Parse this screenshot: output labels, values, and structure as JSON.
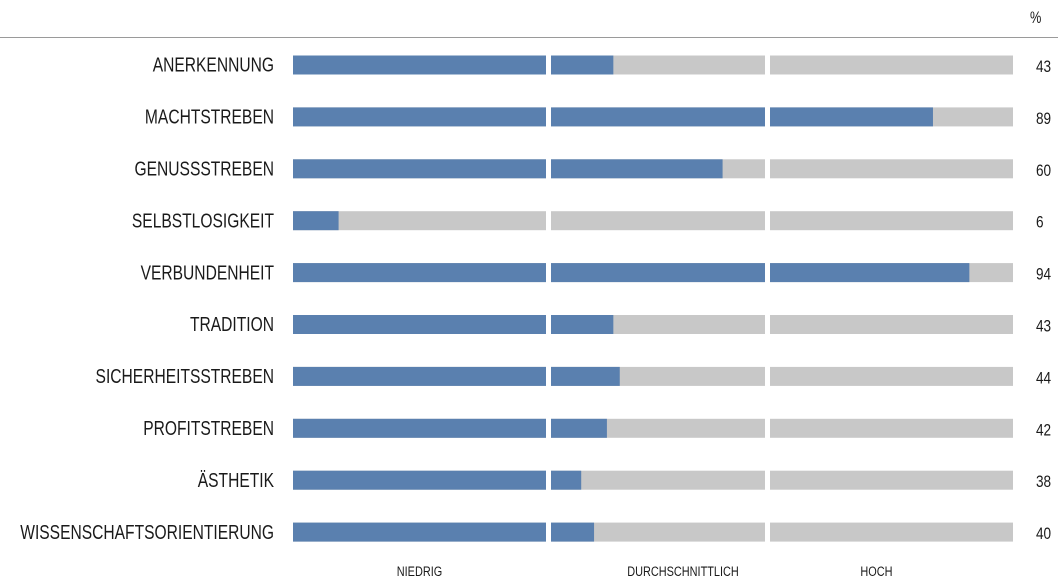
{
  "chart_data": {
    "type": "bar",
    "unit": "%",
    "categories": [
      "ANERKENNUNG",
      "MACHTSTREBEN",
      "GENUSSSTREBEN",
      "SELBSTLOSIGKEIT",
      "VERBUNDENHEIT",
      "TRADITION",
      "SICHERHEITSSTREBEN",
      "PROFITSTREBEN",
      "ÄSTHETIK",
      "WISSENSCHAFTSORIENTIERUNG"
    ],
    "values": [
      43,
      89,
      60,
      6,
      94,
      43,
      44,
      42,
      38,
      40
    ],
    "value_labels": [
      "43",
      "89",
      "60",
      "6",
      "94",
      "43",
      "44",
      "42",
      "38",
      "40"
    ],
    "xlim": [
      0,
      100
    ],
    "segment_labels": [
      "NIEDRIG",
      "DURCHSCHNITTLICH",
      "HOCH"
    ],
    "grid": false,
    "legend": "none",
    "colors": {
      "fill": "#5a80af",
      "track": "#c8c8c8"
    }
  }
}
